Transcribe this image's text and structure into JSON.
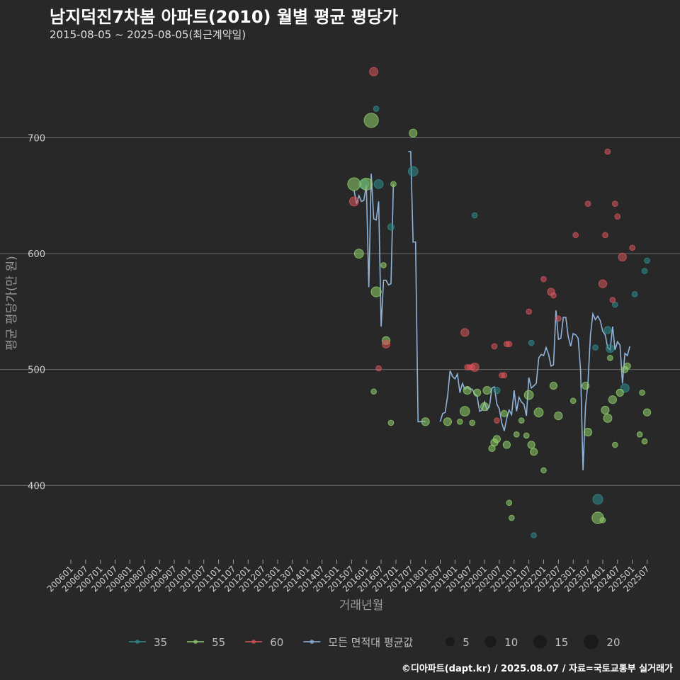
{
  "title": "남지덕진7차봄 아파트(2010) 월별 평균 평당가",
  "subtitle": "2015-08-05 ~ 2025-08-05(최근계약일)",
  "footer": "©디아파트(dapt.kr) / 2025.08.07 / 자료=국토교통부 실거래가",
  "colors": {
    "35": "#2e8b8b",
    "55": "#8fce6a",
    "60": "#d9535a",
    "avg": "#8fb3d9",
    "grid": "#6a6a6a",
    "background": "#282828"
  },
  "chart_data": {
    "type": "scatter",
    "xlabel": "거래년월",
    "ylabel": "평균 평당가(만 원)",
    "ylim": [
      336,
      773
    ],
    "yticks": [
      400,
      500,
      600,
      700
    ],
    "x_start": "2006-01",
    "x_end": "2025-08",
    "xticks": [
      "200601",
      "200607",
      "200701",
      "200707",
      "200801",
      "200807",
      "200901",
      "200907",
      "201001",
      "201007",
      "201101",
      "201107",
      "201201",
      "201207",
      "201301",
      "201307",
      "201401",
      "201407",
      "201501",
      "201507",
      "201601",
      "201607",
      "201701",
      "201707",
      "201801",
      "201807",
      "201901",
      "201907",
      "202001",
      "202007",
      "202101",
      "202107",
      "202201",
      "202207",
      "202301",
      "202307",
      "202401",
      "202407",
      "202501",
      "202507"
    ],
    "legend": {
      "series": [
        {
          "key": "35",
          "label": "35"
        },
        {
          "key": "55",
          "label": "55"
        },
        {
          "key": "60",
          "label": "60"
        },
        {
          "key": "avg",
          "label": "모든 면적대 평균값"
        }
      ],
      "sizes": [
        {
          "label": "5",
          "value": 5
        },
        {
          "label": "10",
          "value": 10
        },
        {
          "label": "15",
          "value": 15
        },
        {
          "label": "20",
          "value": 20
        }
      ]
    },
    "series": [
      {
        "name": "35",
        "points": [
          {
            "x": "2015-12",
            "y": 660,
            "n": 8
          },
          {
            "x": "2016-05",
            "y": 725,
            "n": 1
          },
          {
            "x": "2016-06",
            "y": 660,
            "n": 6
          },
          {
            "x": "2016-11",
            "y": 623,
            "n": 2
          },
          {
            "x": "2017-08",
            "y": 671,
            "n": 7
          },
          {
            "x": "2019-09",
            "y": 633,
            "n": 1
          },
          {
            "x": "2020-06",
            "y": 482,
            "n": 2
          },
          {
            "x": "2021-08",
            "y": 523,
            "n": 1
          },
          {
            "x": "2021-09",
            "y": 357,
            "n": 1
          },
          {
            "x": "2023-10",
            "y": 519,
            "n": 1
          },
          {
            "x": "2023-11",
            "y": 388,
            "n": 8
          },
          {
            "x": "2024-03",
            "y": 534,
            "n": 3
          },
          {
            "x": "2024-04",
            "y": 518,
            "n": 4
          },
          {
            "x": "2024-06",
            "y": 556,
            "n": 1
          },
          {
            "x": "2024-10",
            "y": 484,
            "n": 5
          },
          {
            "x": "2025-02",
            "y": 565,
            "n": 1
          },
          {
            "x": "2025-06",
            "y": 585,
            "n": 1
          },
          {
            "x": "2025-07",
            "y": 594,
            "n": 1
          }
        ]
      },
      {
        "name": "55",
        "points": [
          {
            "x": "2015-08",
            "y": 660,
            "n": 15
          },
          {
            "x": "2015-10",
            "y": 600,
            "n": 6
          },
          {
            "x": "2016-01",
            "y": 660,
            "n": 13
          },
          {
            "x": "2016-03",
            "y": 715,
            "n": 20
          },
          {
            "x": "2016-04",
            "y": 481,
            "n": 1
          },
          {
            "x": "2016-05",
            "y": 567,
            "n": 8
          },
          {
            "x": "2016-08",
            "y": 590,
            "n": 1
          },
          {
            "x": "2016-09",
            "y": 525,
            "n": 4
          },
          {
            "x": "2016-11",
            "y": 454,
            "n": 1
          },
          {
            "x": "2016-12",
            "y": 660,
            "n": 1
          },
          {
            "x": "2017-08",
            "y": 704,
            "n": 4
          },
          {
            "x": "2018-01",
            "y": 455,
            "n": 4
          },
          {
            "x": "2018-10",
            "y": 455,
            "n": 4
          },
          {
            "x": "2019-03",
            "y": 455,
            "n": 1
          },
          {
            "x": "2019-05",
            "y": 464,
            "n": 7
          },
          {
            "x": "2019-06",
            "y": 482,
            "n": 4
          },
          {
            "x": "2019-08",
            "y": 454,
            "n": 1
          },
          {
            "x": "2019-10",
            "y": 480,
            "n": 3
          },
          {
            "x": "2020-01",
            "y": 468,
            "n": 4
          },
          {
            "x": "2020-02",
            "y": 482,
            "n": 4
          },
          {
            "x": "2020-04",
            "y": 432,
            "n": 2
          },
          {
            "x": "2020-05",
            "y": 437,
            "n": 3
          },
          {
            "x": "2020-06",
            "y": 440,
            "n": 3
          },
          {
            "x": "2020-09",
            "y": 462,
            "n": 2
          },
          {
            "x": "2020-10",
            "y": 435,
            "n": 3
          },
          {
            "x": "2020-11",
            "y": 385,
            "n": 1
          },
          {
            "x": "2020-12",
            "y": 372,
            "n": 1
          },
          {
            "x": "2021-02",
            "y": 444,
            "n": 1
          },
          {
            "x": "2021-04",
            "y": 456,
            "n": 1
          },
          {
            "x": "2021-06",
            "y": 443,
            "n": 1
          },
          {
            "x": "2021-07",
            "y": 478,
            "n": 6
          },
          {
            "x": "2021-08",
            "y": 435,
            "n": 3
          },
          {
            "x": "2021-09",
            "y": 429,
            "n": 3
          },
          {
            "x": "2021-11",
            "y": 463,
            "n": 6
          },
          {
            "x": "2022-01",
            "y": 413,
            "n": 1
          },
          {
            "x": "2022-05",
            "y": 486,
            "n": 3
          },
          {
            "x": "2022-07",
            "y": 460,
            "n": 4
          },
          {
            "x": "2023-01",
            "y": 473,
            "n": 1
          },
          {
            "x": "2023-06",
            "y": 486,
            "n": 3
          },
          {
            "x": "2023-07",
            "y": 446,
            "n": 4
          },
          {
            "x": "2023-11",
            "y": 372,
            "n": 12
          },
          {
            "x": "2024-01",
            "y": 370,
            "n": 1
          },
          {
            "x": "2024-02",
            "y": 465,
            "n": 4
          },
          {
            "x": "2024-03",
            "y": 458,
            "n": 5
          },
          {
            "x": "2024-04",
            "y": 510,
            "n": 1
          },
          {
            "x": "2024-05",
            "y": 474,
            "n": 4
          },
          {
            "x": "2024-06",
            "y": 435,
            "n": 1
          },
          {
            "x": "2024-08",
            "y": 480,
            "n": 3
          },
          {
            "x": "2024-10",
            "y": 500,
            "n": 2
          },
          {
            "x": "2024-11",
            "y": 503,
            "n": 2
          },
          {
            "x": "2025-04",
            "y": 444,
            "n": 1
          },
          {
            "x": "2025-05",
            "y": 480,
            "n": 1
          },
          {
            "x": "2025-06",
            "y": 438,
            "n": 1
          },
          {
            "x": "2025-07",
            "y": 463,
            "n": 3
          }
        ]
      },
      {
        "name": "60",
        "points": [
          {
            "x": "2015-08",
            "y": 645,
            "n": 6
          },
          {
            "x": "2016-04",
            "y": 757,
            "n": 5
          },
          {
            "x": "2016-06",
            "y": 501,
            "n": 1
          },
          {
            "x": "2016-09",
            "y": 522,
            "n": 4
          },
          {
            "x": "2019-05",
            "y": 532,
            "n": 4
          },
          {
            "x": "2019-06",
            "y": 502,
            "n": 1
          },
          {
            "x": "2019-07",
            "y": 502,
            "n": 1
          },
          {
            "x": "2019-08",
            "y": 502,
            "n": 1
          },
          {
            "x": "2019-09",
            "y": 502,
            "n": 5
          },
          {
            "x": "2020-05",
            "y": 520,
            "n": 1
          },
          {
            "x": "2020-06",
            "y": 456,
            "n": 1
          },
          {
            "x": "2020-08",
            "y": 495,
            "n": 1
          },
          {
            "x": "2020-09",
            "y": 495,
            "n": 1
          },
          {
            "x": "2020-10",
            "y": 522,
            "n": 1
          },
          {
            "x": "2020-11",
            "y": 522,
            "n": 1
          },
          {
            "x": "2021-07",
            "y": 550,
            "n": 1
          },
          {
            "x": "2022-01",
            "y": 578,
            "n": 1
          },
          {
            "x": "2022-04",
            "y": 567,
            "n": 3
          },
          {
            "x": "2022-05",
            "y": 564,
            "n": 1
          },
          {
            "x": "2022-07",
            "y": 544,
            "n": 1
          },
          {
            "x": "2023-02",
            "y": 616,
            "n": 1
          },
          {
            "x": "2023-07",
            "y": 643,
            "n": 1
          },
          {
            "x": "2024-01",
            "y": 574,
            "n": 4
          },
          {
            "x": "2024-02",
            "y": 616,
            "n": 1
          },
          {
            "x": "2024-03",
            "y": 688,
            "n": 1
          },
          {
            "x": "2024-05",
            "y": 560,
            "n": 1
          },
          {
            "x": "2024-06",
            "y": 643,
            "n": 1
          },
          {
            "x": "2024-07",
            "y": 632,
            "n": 1
          },
          {
            "x": "2024-09",
            "y": 597,
            "n": 4
          },
          {
            "x": "2025-01",
            "y": 605,
            "n": 1
          }
        ]
      }
    ],
    "average_line": {
      "name": "모든 면적대 평균값",
      "points": [
        {
          "x": "2015-08",
          "y": 655
        },
        {
          "x": "2015-09",
          "y": 643
        },
        {
          "x": "2015-10",
          "y": 650
        },
        {
          "x": "2015-11",
          "y": 645
        },
        {
          "x": "2015-12",
          "y": 646
        },
        {
          "x": "2016-01",
          "y": 659
        },
        {
          "x": "2016-02",
          "y": 571
        },
        {
          "x": "2016-03",
          "y": 669
        },
        {
          "x": "2016-04",
          "y": 630
        },
        {
          "x": "2016-05",
          "y": 629
        },
        {
          "x": "2016-06",
          "y": 645
        },
        {
          "x": "2016-07",
          "y": 537
        },
        {
          "x": "2016-08",
          "y": 577
        },
        {
          "x": "2016-09",
          "y": 577
        },
        {
          "x": "2016-10",
          "y": 573
        },
        {
          "x": "2016-11",
          "y": 574
        },
        {
          "x": "2016-12",
          "y": 660
        },
        {
          "x": "2017-06",
          "y": 688
        },
        {
          "x": "2017-07",
          "y": 688
        },
        {
          "x": "2017-08",
          "y": 610
        },
        {
          "x": "2017-09",
          "y": 610
        },
        {
          "x": "2017-10",
          "y": 455
        },
        {
          "x": "2017-11",
          "y": 455
        },
        {
          "x": "2018-01",
          "y": 455
        },
        {
          "x": "2018-07",
          "y": 455
        },
        {
          "x": "2018-08",
          "y": 462
        },
        {
          "x": "2018-09",
          "y": 463
        },
        {
          "x": "2018-10",
          "y": 477
        },
        {
          "x": "2018-11",
          "y": 499
        },
        {
          "x": "2018-12",
          "y": 494
        },
        {
          "x": "2019-01",
          "y": 492
        },
        {
          "x": "2019-02",
          "y": 496
        },
        {
          "x": "2019-03",
          "y": 480
        },
        {
          "x": "2019-04",
          "y": 488
        },
        {
          "x": "2019-05",
          "y": 483
        },
        {
          "x": "2019-06",
          "y": 485
        },
        {
          "x": "2019-07",
          "y": 483
        },
        {
          "x": "2019-08",
          "y": 483
        },
        {
          "x": "2019-09",
          "y": 479
        },
        {
          "x": "2019-10",
          "y": 477
        },
        {
          "x": "2019-11",
          "y": 464
        },
        {
          "x": "2019-12",
          "y": 465
        },
        {
          "x": "2020-01",
          "y": 472
        },
        {
          "x": "2020-02",
          "y": 465
        },
        {
          "x": "2020-03",
          "y": 468
        },
        {
          "x": "2020-04",
          "y": 484
        },
        {
          "x": "2020-05",
          "y": 485
        },
        {
          "x": "2020-06",
          "y": 470
        },
        {
          "x": "2020-07",
          "y": 466
        },
        {
          "x": "2020-08",
          "y": 454
        },
        {
          "x": "2020-09",
          "y": 447
        },
        {
          "x": "2020-10",
          "y": 458
        },
        {
          "x": "2020-11",
          "y": 465
        },
        {
          "x": "2020-12",
          "y": 461
        },
        {
          "x": "2021-01",
          "y": 482
        },
        {
          "x": "2021-02",
          "y": 464
        },
        {
          "x": "2021-03",
          "y": 476
        },
        {
          "x": "2021-04",
          "y": 472
        },
        {
          "x": "2021-05",
          "y": 470
        },
        {
          "x": "2021-06",
          "y": 460
        },
        {
          "x": "2021-07",
          "y": 493
        },
        {
          "x": "2021-08",
          "y": 484
        },
        {
          "x": "2021-09",
          "y": 486
        },
        {
          "x": "2021-10",
          "y": 488
        },
        {
          "x": "2021-11",
          "y": 510
        },
        {
          "x": "2021-12",
          "y": 513
        },
        {
          "x": "2022-01",
          "y": 512
        },
        {
          "x": "2022-02",
          "y": 519
        },
        {
          "x": "2022-03",
          "y": 513
        },
        {
          "x": "2022-04",
          "y": 503
        },
        {
          "x": "2022-05",
          "y": 504
        },
        {
          "x": "2022-06",
          "y": 551
        },
        {
          "x": "2022-07",
          "y": 526
        },
        {
          "x": "2022-08",
          "y": 527
        },
        {
          "x": "2022-09",
          "y": 545
        },
        {
          "x": "2022-10",
          "y": 545
        },
        {
          "x": "2022-11",
          "y": 528
        },
        {
          "x": "2022-12",
          "y": 520
        },
        {
          "x": "2023-01",
          "y": 531
        },
        {
          "x": "2023-02",
          "y": 530
        },
        {
          "x": "2023-03",
          "y": 527
        },
        {
          "x": "2023-04",
          "y": 499
        },
        {
          "x": "2023-05",
          "y": 413
        },
        {
          "x": "2023-06",
          "y": 468
        },
        {
          "x": "2023-07",
          "y": 489
        },
        {
          "x": "2023-08",
          "y": 530
        },
        {
          "x": "2023-09",
          "y": 548
        },
        {
          "x": "2023-10",
          "y": 543
        },
        {
          "x": "2023-11",
          "y": 546
        },
        {
          "x": "2023-12",
          "y": 542
        },
        {
          "x": "2024-01",
          "y": 533
        },
        {
          "x": "2024-02",
          "y": 530
        },
        {
          "x": "2024-03",
          "y": 519
        },
        {
          "x": "2024-04",
          "y": 517
        },
        {
          "x": "2024-05",
          "y": 537
        },
        {
          "x": "2024-06",
          "y": 517
        },
        {
          "x": "2024-07",
          "y": 524
        },
        {
          "x": "2024-08",
          "y": 521
        },
        {
          "x": "2024-09",
          "y": 488
        },
        {
          "x": "2024-10",
          "y": 514
        },
        {
          "x": "2024-11",
          "y": 512
        },
        {
          "x": "2024-12",
          "y": 520
        }
      ]
    }
  }
}
